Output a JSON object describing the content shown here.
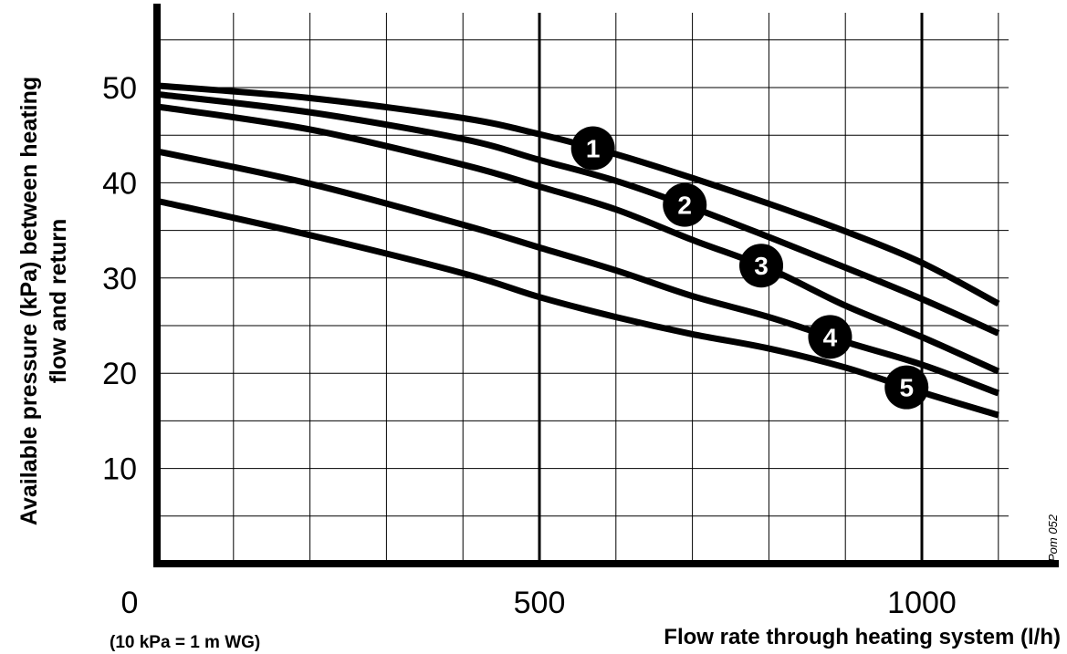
{
  "chart_data": {
    "type": "line",
    "title": "",
    "xlabel": "Flow rate through heating system (l/h)",
    "ylabel_lines": [
      "Available pressure (kPa) between heating",
      "flow and return"
    ],
    "note": "(10 kPa = 1 m WG)",
    "figure_code": "Pom 052",
    "xlim": [
      0,
      1150
    ],
    "ylim": [
      0,
      57
    ],
    "x_ticks": [
      {
        "value": 0,
        "label": "0"
      },
      {
        "value": 500,
        "label": "500"
      },
      {
        "value": 1000,
        "label": "1000"
      }
    ],
    "y_ticks": [
      {
        "value": 10,
        "label": "10"
      },
      {
        "value": 20,
        "label": "20"
      },
      {
        "value": 30,
        "label": "30"
      },
      {
        "value": 40,
        "label": "40"
      },
      {
        "value": 50,
        "label": "50"
      }
    ],
    "grid": true,
    "series": [
      {
        "name": "1",
        "x": [
          0,
          200,
          400,
          500,
          600,
          700,
          800,
          900,
          1000,
          1100
        ],
        "y": [
          50.2,
          48.9,
          46.8,
          45.1,
          43.0,
          40.5,
          37.8,
          34.9,
          31.6,
          27.3
        ],
        "marker_x": 570
      },
      {
        "name": "2",
        "x": [
          0,
          200,
          400,
          500,
          600,
          700,
          800,
          900,
          1000,
          1100
        ],
        "y": [
          49.3,
          47.4,
          44.6,
          42.4,
          40.2,
          37.4,
          34.3,
          31.1,
          27.8,
          24.2
        ],
        "marker_x": 690
      },
      {
        "name": "3",
        "x": [
          0,
          200,
          400,
          500,
          600,
          700,
          800,
          900,
          1000,
          1100
        ],
        "y": [
          48.0,
          45.6,
          41.9,
          39.6,
          37.2,
          34.0,
          31.0,
          27.1,
          23.8,
          20.2
        ],
        "marker_x": 790
      },
      {
        "name": "4",
        "x": [
          0,
          200,
          400,
          500,
          600,
          700,
          800,
          900,
          1000,
          1100
        ],
        "y": [
          43.3,
          39.9,
          35.6,
          33.2,
          30.8,
          28.1,
          25.9,
          23.3,
          20.9,
          17.9
        ],
        "marker_x": 880
      },
      {
        "name": "5",
        "x": [
          0,
          200,
          400,
          500,
          600,
          700,
          800,
          900,
          1000,
          1100
        ],
        "y": [
          38.1,
          34.5,
          30.5,
          28.0,
          25.9,
          24.1,
          22.6,
          20.6,
          18.0,
          15.6
        ],
        "marker_x": 980
      }
    ]
  }
}
